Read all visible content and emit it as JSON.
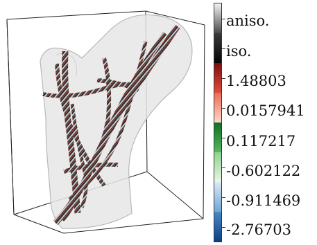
{
  "colorbar": {
    "labels": [
      "aniso.",
      "iso.",
      "1.48803",
      "0.0157941",
      "0.117217",
      "-0.602122",
      "-0.911469",
      "-2.76703"
    ],
    "segments": [
      {
        "from": "#f4f4f4",
        "to": "#4a4a4a"
      },
      {
        "from": "#3a3a3a",
        "to": "#050505"
      },
      {
        "from": "#7a0d12",
        "to": "#e24d3b"
      },
      {
        "from": "#ec6b55",
        "to": "#ffd8cc"
      },
      {
        "from": "#0f6e22",
        "to": "#58b860"
      },
      {
        "from": "#8ed28e",
        "to": "#eaf7ea"
      },
      {
        "from": "#dbe9f6",
        "to": "#6fa6d6"
      },
      {
        "from": "#4a88c6",
        "to": "#0c3e88"
      }
    ]
  },
  "colors": {
    "bone": "#e8e8e8",
    "bone_edge": "#b9b9b9",
    "box_edge": "#222222",
    "fiber_dark": "#2b2b2b",
    "fiber_mid": "#4e4e4e",
    "fiber_red": "#b53b36",
    "fiber_green": "#3f8c4a"
  }
}
